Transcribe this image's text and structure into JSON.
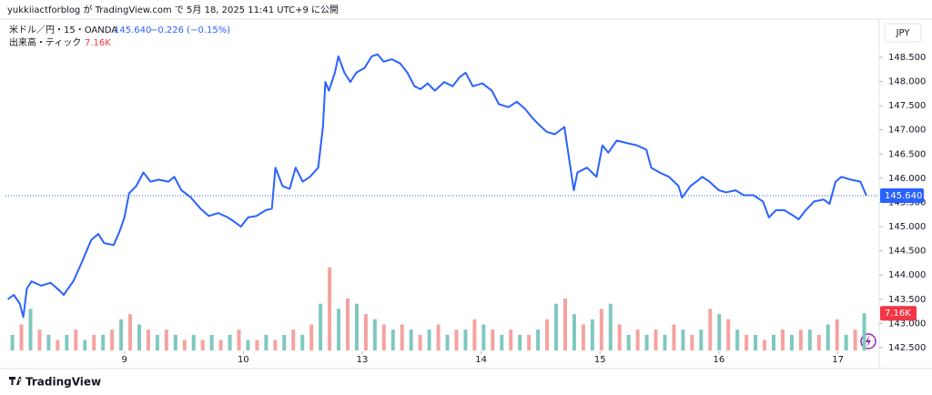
{
  "chart_data": {
    "type": "line",
    "header": "yukkiiactforblog が TradingView.com で 5月 18, 2025 11:41 UTC+9 に公開",
    "currency": "JPY",
    "footer": "TradingView",
    "last_price": {
      "value": 145.64,
      "label": "145.640"
    },
    "change": "−0.226 (−0.15%)",
    "series": [
      {
        "name": "米ドル／円・15・OANDA",
        "color": "#2962ff",
        "x": [
          0.02,
          0.07,
          0.12,
          0.15,
          0.18,
          0.22,
          0.3,
          0.38,
          0.45,
          0.49,
          0.57,
          0.64,
          0.72,
          0.78,
          0.83,
          0.91,
          0.96,
          1.0,
          1.04,
          1.1,
          1.16,
          1.22,
          1.29,
          1.37,
          1.42,
          1.48,
          1.56,
          1.64,
          1.71,
          1.79,
          1.87,
          1.93,
          1.98,
          2.04,
          2.11,
          2.19,
          2.24,
          2.27,
          2.33,
          2.39,
          2.44,
          2.5,
          2.56,
          2.63,
          2.67,
          2.69,
          2.72,
          2.77,
          2.8,
          2.85,
          2.9,
          2.95,
          3.02,
          3.08,
          3.13,
          3.18,
          3.25,
          3.32,
          3.38,
          3.44,
          3.49,
          3.55,
          3.61,
          3.69,
          3.76,
          3.82,
          3.87,
          3.93,
          4.01,
          4.09,
          4.15,
          4.23,
          4.3,
          4.37,
          4.43,
          4.49,
          4.55,
          4.62,
          4.7,
          4.74,
          4.78,
          4.81,
          4.89,
          4.97,
          5.02,
          5.07,
          5.14,
          5.24,
          5.31,
          5.39,
          5.43,
          5.5,
          5.58,
          5.66,
          5.69,
          5.76,
          5.81,
          5.86,
          5.92,
          6.0,
          6.06,
          6.14,
          6.21,
          6.29,
          6.37,
          6.42,
          6.48,
          6.55,
          6.63,
          6.67,
          6.73,
          6.8,
          6.88,
          6.93,
          6.98,
          7.03,
          7.11,
          7.19,
          7.24
        ],
        "values": [
          143.5,
          143.59,
          143.41,
          143.13,
          143.72,
          143.87,
          143.78,
          143.84,
          143.69,
          143.59,
          143.87,
          144.25,
          144.72,
          144.85,
          144.66,
          144.62,
          144.9,
          145.19,
          145.69,
          145.84,
          146.12,
          145.93,
          145.97,
          145.93,
          146.03,
          145.75,
          145.6,
          145.37,
          145.22,
          145.28,
          145.19,
          145.09,
          145.0,
          145.19,
          145.22,
          145.34,
          145.37,
          146.22,
          145.84,
          145.78,
          146.22,
          145.93,
          146.03,
          146.22,
          147.06,
          147.99,
          147.81,
          148.18,
          148.52,
          148.18,
          147.99,
          148.18,
          148.28,
          148.52,
          148.56,
          148.41,
          148.46,
          148.37,
          148.18,
          147.9,
          147.84,
          147.96,
          147.81,
          147.99,
          147.9,
          148.09,
          148.18,
          147.9,
          147.96,
          147.81,
          147.53,
          147.47,
          147.58,
          147.43,
          147.25,
          147.1,
          146.96,
          146.91,
          147.06,
          146.4,
          145.75,
          146.12,
          146.22,
          146.03,
          146.68,
          146.53,
          146.78,
          146.72,
          146.68,
          146.59,
          146.22,
          146.12,
          146.03,
          145.84,
          145.6,
          145.84,
          145.93,
          146.03,
          145.93,
          145.75,
          145.71,
          145.75,
          145.65,
          145.65,
          145.52,
          145.19,
          145.34,
          145.34,
          145.22,
          145.15,
          145.34,
          145.52,
          145.56,
          145.47,
          145.93,
          146.03,
          145.97,
          145.93,
          145.64
        ]
      }
    ],
    "volume": {
      "name": "出来高・ティック",
      "up_color": "#7fc8c0",
      "down_color": "#f5a3a0",
      "label_color": "#f23645",
      "values": [
        3,
        5,
        8,
        4,
        3,
        2,
        3,
        4,
        2,
        3,
        3,
        4,
        6,
        7,
        5,
        4,
        3,
        4,
        3,
        2,
        3,
        2,
        3,
        2,
        3,
        4,
        2,
        2,
        3,
        2,
        3,
        4,
        3,
        5,
        9,
        16,
        8,
        10,
        9,
        7,
        6,
        5,
        4,
        5,
        4,
        3,
        4,
        5,
        3,
        4,
        4,
        6,
        5,
        4,
        3,
        4,
        3,
        3,
        4,
        6,
        9,
        10,
        7,
        5,
        6,
        8,
        9,
        5,
        3,
        4,
        3,
        4,
        3,
        5,
        4,
        3,
        4,
        8,
        7,
        6,
        4,
        3,
        3,
        2,
        3,
        4,
        3,
        4,
        4,
        3,
        5,
        6,
        3,
        4,
        7.16
      ],
      "value_labels": {
        "94": "7.16K"
      }
    },
    "xlim": [
      0,
      7.34
    ],
    "xticks": [
      {
        "value": 1,
        "label": "9"
      },
      {
        "value": 2,
        "label": "10"
      },
      {
        "value": 3,
        "label": "13"
      },
      {
        "value": 4,
        "label": "14"
      },
      {
        "value": 5,
        "label": "15"
      },
      {
        "value": 6,
        "label": "16"
      },
      {
        "value": 7,
        "label": "17"
      }
    ],
    "ylim": [
      142.16,
      149.27
    ],
    "yticks": [
      {
        "value": 142.5,
        "label": "142.500"
      },
      {
        "value": 143,
        "label": "143.000"
      },
      {
        "value": 143.5,
        "label": "143.500"
      },
      {
        "value": 144,
        "label": "144.000"
      },
      {
        "value": 144.5,
        "label": "144.500"
      },
      {
        "value": 145,
        "label": "145.000"
      },
      {
        "value": 145.5,
        "label": "145.500"
      },
      {
        "value": 146,
        "label": "146.000"
      },
      {
        "value": 146.5,
        "label": "146.500"
      },
      {
        "value": 147,
        "label": "147.000"
      },
      {
        "value": 147.5,
        "label": "147.500"
      },
      {
        "value": 148,
        "label": "148.000"
      },
      {
        "value": 148.5,
        "label": "148.500"
      }
    ],
    "grid": false
  }
}
